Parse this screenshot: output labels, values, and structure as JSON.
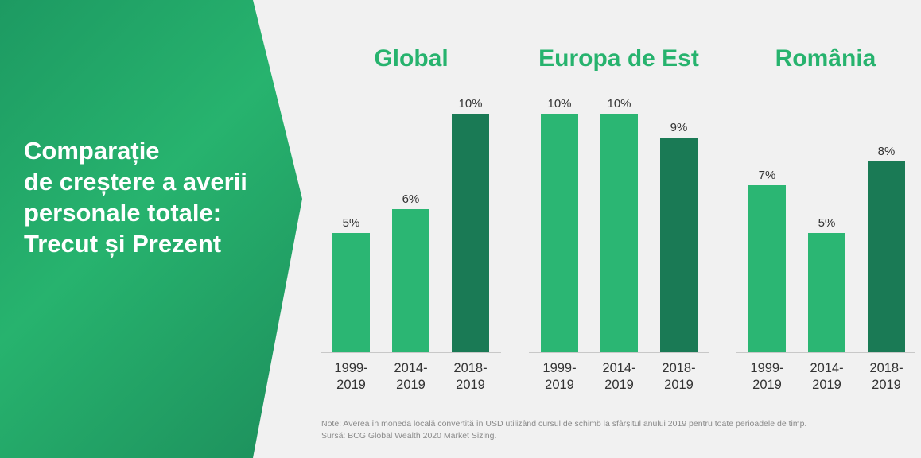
{
  "left_title": "Comparație\nde creștere a averii\npersonale totale:\nTrecut și Prezent",
  "colors": {
    "light_bar": "#2bb673",
    "dark_bar": "#1a7a55",
    "accent": "#27b36e"
  },
  "chart_data": [
    {
      "type": "bar",
      "title": "Global",
      "categories": [
        "1999-\n2019",
        "2014-\n2019",
        "2018-\n2019"
      ],
      "values": [
        5,
        6,
        10
      ],
      "value_labels": [
        "5%",
        "6%",
        "10%"
      ]
    },
    {
      "type": "bar",
      "title": "Europa de Est",
      "categories": [
        "1999-\n2019",
        "2014-\n2019",
        "2018-\n2019"
      ],
      "values": [
        10,
        10,
        9
      ],
      "value_labels": [
        "10%",
        "10%",
        "9%"
      ]
    },
    {
      "type": "bar",
      "title": "România",
      "categories": [
        "1999-\n2019",
        "2014-\n2019",
        "2018-\n2019"
      ],
      "values": [
        7,
        5,
        8
      ],
      "value_labels": [
        "7%",
        "5%",
        "8%"
      ]
    }
  ],
  "note": "Note: Averea în moneda locală convertită în USD utilizând cursul de schimb la sfârșitul anului 2019 pentru toate perioadele de timp.",
  "source": "Sursă: BCG Global Wealth 2020 Market Sizing."
}
